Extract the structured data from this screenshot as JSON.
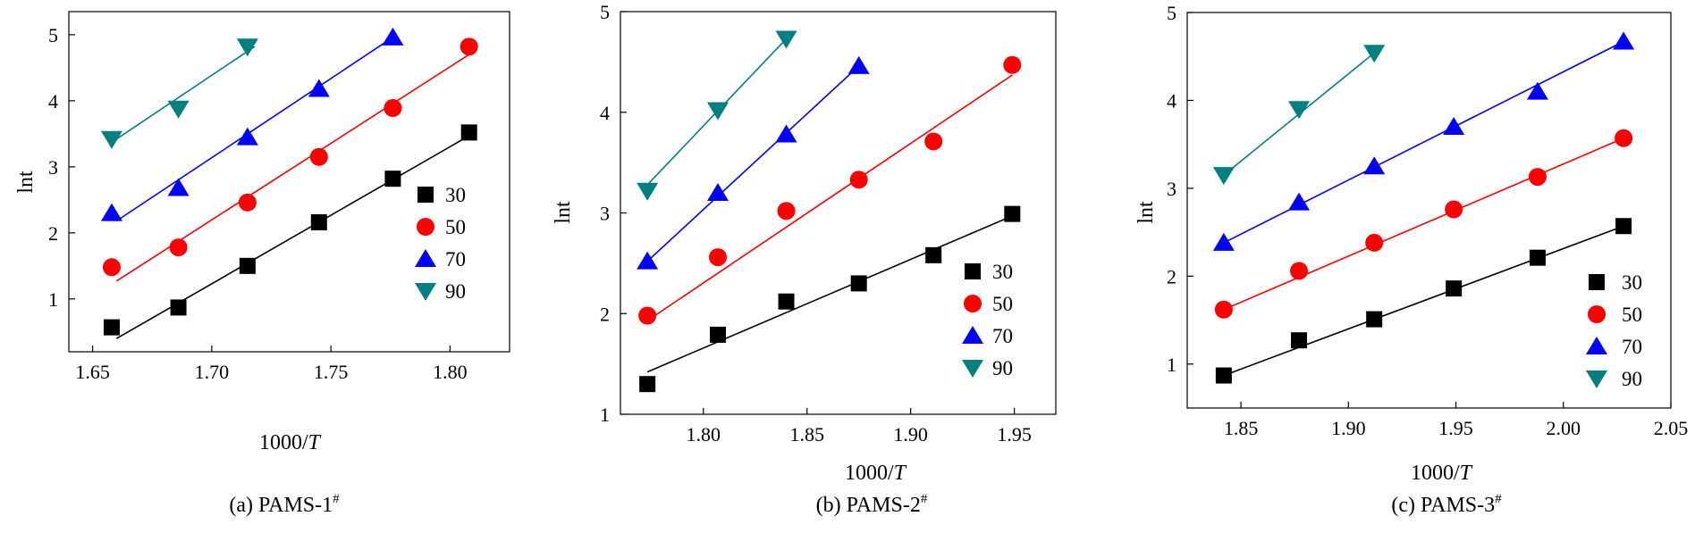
{
  "figure": {
    "legend_levels": [
      "30",
      "50",
      "70",
      "90"
    ],
    "series_colors": {
      "30": "#000000",
      "50": "#ff0000",
      "70": "#0000ff",
      "90": "#008080"
    },
    "series_markers": {
      "30": "square",
      "50": "circle",
      "70": "triangle-up",
      "90": "triangle-down"
    }
  },
  "chart_data": [
    {
      "type": "scatter",
      "title": "(a) PAMS-1#",
      "caption_main": "(a) PAMS-1",
      "caption_sup": "#",
      "xlabel_main": "1000/",
      "xlabel_italic": "T",
      "ylabel": "lnt",
      "xlim": [
        1.64,
        1.825
      ],
      "ylim": [
        0.2,
        5.35
      ],
      "xticks": [
        1.65,
        1.7,
        1.75,
        1.8
      ],
      "xticklabels": [
        "1.65",
        "1.70",
        "1.75",
        "1.80"
      ],
      "yticks": [
        1,
        2,
        3,
        4,
        5
      ],
      "yticklabels": [
        "1",
        "2",
        "3",
        "4",
        "5"
      ],
      "legend": [
        "30",
        "50",
        "70",
        "90"
      ],
      "series": [
        {
          "name": "30",
          "x": [
            1.658,
            1.686,
            1.715,
            1.745,
            1.776,
            1.808
          ],
          "y": [
            0.57,
            0.87,
            1.5,
            2.16,
            2.82,
            3.52
          ],
          "fit": [
            [
              1.66,
              0.4
            ],
            [
              1.808,
              3.47
            ]
          ]
        },
        {
          "name": "50",
          "x": [
            1.658,
            1.686,
            1.715,
            1.745,
            1.776,
            1.808
          ],
          "y": [
            1.48,
            1.78,
            2.46,
            3.15,
            3.89,
            4.82
          ],
          "fit": [
            [
              1.66,
              1.27
            ],
            [
              1.808,
              4.7
            ]
          ]
        },
        {
          "name": "70",
          "x": [
            1.658,
            1.686,
            1.715,
            1.745,
            1.776
          ],
          "y": [
            2.3,
            2.68,
            3.45,
            4.18,
            4.96
          ],
          "fit": [
            [
              1.66,
              2.18
            ],
            [
              1.776,
              4.96
            ]
          ]
        },
        {
          "name": "90",
          "x": [
            1.658,
            1.686,
            1.715
          ],
          "y": [
            3.42,
            3.88,
            4.82
          ],
          "fit": [
            [
              1.66,
              3.42
            ],
            [
              1.718,
              4.82
            ]
          ]
        }
      ]
    },
    {
      "type": "scatter",
      "title": "(b) PAMS-2#",
      "caption_main": "(b) PAMS-2",
      "caption_sup": "#",
      "xlabel_main": "1000/",
      "xlabel_italic": "T",
      "ylabel": "lnt",
      "xlim": [
        1.76,
        1.97
      ],
      "ylim": [
        1.0,
        5.0
      ],
      "xticks": [
        1.8,
        1.85,
        1.9,
        1.95
      ],
      "xticklabels": [
        "1.80",
        "1.85",
        "1.90",
        "1.95"
      ],
      "yticks": [
        1,
        2,
        3,
        4,
        5
      ],
      "yticklabels": [
        "1",
        "2",
        "3",
        "4",
        "5"
      ],
      "legend": [
        "30",
        "50",
        "70",
        "90"
      ],
      "series": [
        {
          "name": "30",
          "x": [
            1.773,
            1.807,
            1.84,
            1.875,
            1.911,
            1.949
          ],
          "y": [
            1.3,
            1.79,
            2.12,
            2.3,
            2.58,
            2.99
          ],
          "fit": [
            [
              1.773,
              1.42
            ],
            [
              1.949,
              2.97
            ]
          ]
        },
        {
          "name": "50",
          "x": [
            1.773,
            1.807,
            1.84,
            1.875,
            1.911,
            1.949
          ],
          "y": [
            1.98,
            2.56,
            3.02,
            3.33,
            3.71,
            4.47
          ],
          "fit": [
            [
              1.773,
              1.93
            ],
            [
              1.949,
              4.37
            ]
          ]
        },
        {
          "name": "70",
          "x": [
            1.773,
            1.807,
            1.84,
            1.875
          ],
          "y": [
            2.52,
            3.2,
            3.78,
            4.46
          ],
          "fit": [
            [
              1.773,
              2.52
            ],
            [
              1.875,
              4.46
            ]
          ]
        },
        {
          "name": "90",
          "x": [
            1.773,
            1.807,
            1.84
          ],
          "y": [
            3.22,
            4.02,
            4.73
          ],
          "fit": [
            [
              1.773,
              3.28
            ],
            [
              1.84,
              4.73
            ]
          ]
        }
      ]
    },
    {
      "type": "scatter",
      "title": "(c) PAMS-3#",
      "caption_main": "(c) PAMS-3",
      "caption_sup": "#",
      "xlabel_main": "1000/",
      "xlabel_italic": "T",
      "ylabel": "lnt",
      "xlim": [
        1.825,
        2.05
      ],
      "ylim": [
        0.5,
        5.0
      ],
      "xticks": [
        1.85,
        1.9,
        1.95,
        2.0,
        2.05
      ],
      "xticklabels": [
        "1.85",
        "1.90",
        "1.95",
        "2.00",
        "2.05"
      ],
      "yticks": [
        1,
        2,
        3,
        4,
        5
      ],
      "yticklabels": [
        "1",
        "2",
        "3",
        "4",
        "5"
      ],
      "legend": [
        "30",
        "50",
        "70",
        "90"
      ],
      "series": [
        {
          "name": "30",
          "x": [
            1.842,
            1.877,
            1.912,
            1.949,
            1.988,
            2.028
          ],
          "y": [
            0.87,
            1.27,
            1.51,
            1.86,
            2.21,
            2.57
          ],
          "fit": [
            [
              1.842,
              0.87
            ],
            [
              2.028,
              2.57
            ]
          ]
        },
        {
          "name": "50",
          "x": [
            1.842,
            1.877,
            1.912,
            1.949,
            1.988,
            2.028
          ],
          "y": [
            1.62,
            2.06,
            2.38,
            2.76,
            3.13,
            3.57
          ],
          "fit": [
            [
              1.842,
              1.62
            ],
            [
              2.028,
              3.57
            ]
          ]
        },
        {
          "name": "70",
          "x": [
            1.842,
            1.877,
            1.912,
            1.949,
            1.988,
            2.028
          ],
          "y": [
            2.38,
            2.84,
            3.25,
            3.7,
            4.1,
            4.67
          ],
          "fit": [
            [
              1.842,
              2.38
            ],
            [
              2.028,
              4.67
            ]
          ]
        },
        {
          "name": "90",
          "x": [
            1.842,
            1.877,
            1.912
          ],
          "y": [
            3.15,
            3.9,
            4.54
          ],
          "fit": [
            [
              1.842,
              3.15
            ],
            [
              1.912,
              4.54
            ]
          ]
        }
      ]
    }
  ]
}
